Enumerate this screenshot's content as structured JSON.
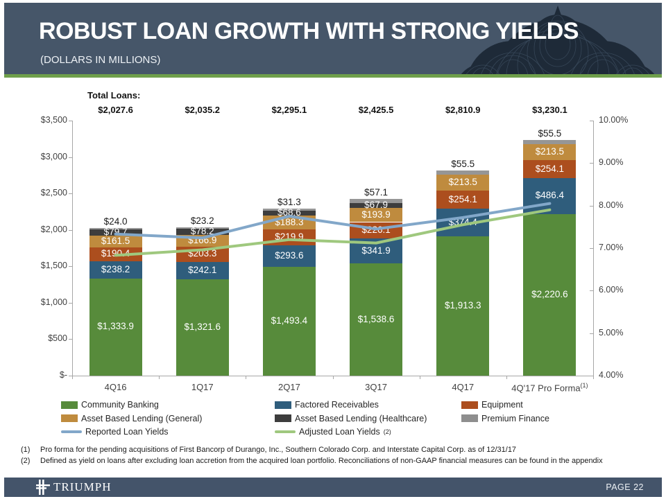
{
  "header": {
    "title": "ROBUST LOAN GROWTH WITH STRONG YIELDS",
    "subtitle": "(DOLLARS IN MILLIONS)"
  },
  "chart_data": {
    "type": "bar",
    "subtype": "stacked-bar-with-yield-lines",
    "title_row_label": "Total Loans:",
    "categories": [
      "4Q16",
      "1Q17",
      "2Q17",
      "3Q17",
      "4Q17",
      "4Q'17 Pro Forma"
    ],
    "category_footnote": {
      "index": 5,
      "marker": "(1)"
    },
    "totals": [
      "$2,027.6",
      "$2,035.2",
      "$2,295.1",
      "$2,425.5",
      "$2,810.9",
      "$3,230.1"
    ],
    "left_axis": {
      "labels": [
        "$3,500",
        "$3,000",
        "$2,500",
        "$2,000",
        "$1,500",
        "$1,000",
        "$500",
        "$-"
      ],
      "min": 0,
      "max": 3500,
      "step": 500
    },
    "right_axis": {
      "labels": [
        "10.00%",
        "9.00%",
        "8.00%",
        "7.00%",
        "6.00%",
        "5.00%",
        "4.00%"
      ],
      "min": 4,
      "max": 10,
      "step": 1
    },
    "series_colors": {
      "Community Banking": "#578b3b",
      "Factored Receivables": "#2f5d7c",
      "Equipment": "#ac4e1e",
      "Asset Based Lending (General)": "#bf8b3e",
      "Asset Based Lending (Healthcare)": "#3d3d3d",
      "Premium Finance": "#969696"
    },
    "bars": [
      {
        "category": "4Q16",
        "segments": [
          {
            "series": "Community Banking",
            "value": 1333.9,
            "label": "$1,333.9"
          },
          {
            "series": "Factored Receivables",
            "value": 238.2,
            "label": "$238.2"
          },
          {
            "series": "Equipment",
            "value": 190.4,
            "label": "$190.4"
          },
          {
            "series": "Asset Based Lending (General)",
            "value": 161.5,
            "label": "$161.5"
          },
          {
            "series": "Asset Based Lending (Healthcare)",
            "value": 79.7,
            "label": "$79.7"
          },
          {
            "series": "Premium Finance",
            "value": 24.0,
            "label": "$24.0",
            "label_above": true
          }
        ]
      },
      {
        "category": "1Q17",
        "segments": [
          {
            "series": "Community Banking",
            "value": 1321.6,
            "label": "$1,321.6"
          },
          {
            "series": "Factored Receivables",
            "value": 242.1,
            "label": "$242.1"
          },
          {
            "series": "Equipment",
            "value": 203.3,
            "label": "$203.3"
          },
          {
            "series": "Asset Based Lending (General)",
            "value": 166.9,
            "label": "$166.9"
          },
          {
            "series": "Asset Based Lending (Healthcare)",
            "value": 78.2,
            "label": "$78.2"
          },
          {
            "series": "Premium Finance",
            "value": 23.2,
            "label": "$23.2",
            "label_above": true
          }
        ]
      },
      {
        "category": "2Q17",
        "segments": [
          {
            "series": "Community Banking",
            "value": 1493.4,
            "label": "$1,493.4"
          },
          {
            "series": "Factored Receivables",
            "value": 293.6,
            "label": "$293.6"
          },
          {
            "series": "Equipment",
            "value": 219.9,
            "label": "$219.9"
          },
          {
            "series": "Asset Based Lending (General)",
            "value": 188.3,
            "label": "$188.3"
          },
          {
            "series": "Asset Based Lending (Healthcare)",
            "value": 68.6,
            "label": "$68.6"
          },
          {
            "series": "Premium Finance",
            "value": 31.3,
            "label": "$31.3",
            "label_above": true
          }
        ]
      },
      {
        "category": "3Q17",
        "segments": [
          {
            "series": "Community Banking",
            "value": 1538.6,
            "label": "$1,538.6"
          },
          {
            "series": "Factored Receivables",
            "value": 341.9,
            "label": "$341.9"
          },
          {
            "series": "Equipment",
            "value": 226.1,
            "label": "$226.1"
          },
          {
            "series": "Asset Based Lending (General)",
            "value": 193.9,
            "label": "$193.9"
          },
          {
            "series": "Asset Based Lending (Healthcare)",
            "value": 67.9,
            "label": "$67.9"
          },
          {
            "series": "Premium Finance",
            "value": 57.1,
            "label": "$57.1",
            "label_above": true
          }
        ]
      },
      {
        "category": "4Q17",
        "segments": [
          {
            "series": "Community Banking",
            "value": 1913.3,
            "label": "$1,913.3"
          },
          {
            "series": "Factored Receivables",
            "value": 374.4,
            "label": "$374.4"
          },
          {
            "series": "Equipment",
            "value": 254.1,
            "label": "$254.1"
          },
          {
            "series": "Asset Based Lending (General)",
            "value": 213.5,
            "label": "$213.5"
          },
          {
            "series": "Premium Finance",
            "value": 55.5,
            "label": "$55.5",
            "label_above": true
          }
        ]
      },
      {
        "category": "4Q'17 Pro Forma",
        "segments": [
          {
            "series": "Community Banking",
            "value": 2220.6,
            "label": "$2,220.6"
          },
          {
            "series": "Factored Receivables",
            "value": 486.4,
            "label": "$486.4"
          },
          {
            "series": "Equipment",
            "value": 254.1,
            "label": "$254.1"
          },
          {
            "series": "Asset Based Lending (General)",
            "value": 213.5,
            "label": "$213.5"
          },
          {
            "series": "Premium Finance",
            "value": 55.5,
            "label": "$55.5",
            "label_above": true
          }
        ]
      }
    ],
    "lines": [
      {
        "name": "Reported Loan Yields",
        "color": "#82a7c9",
        "values_pct": [
          7.33,
          7.24,
          7.75,
          7.45,
          7.72,
          8.05
        ],
        "estimated_from_plot": true
      },
      {
        "name": "Adjusted Loan Yields",
        "color": "#9fc87e",
        "values_pct": [
          6.83,
          6.96,
          7.2,
          7.12,
          7.55,
          7.9
        ],
        "estimated_from_plot": true
      }
    ],
    "legend": {
      "columns": [
        [
          {
            "label": "Community Banking",
            "type": "patch",
            "color": "#578b3b"
          },
          {
            "label": "Asset Based Lending (General)",
            "type": "patch",
            "color": "#bf8b3e"
          },
          {
            "label": "Reported Loan Yields",
            "type": "line",
            "color": "#82a7c9"
          }
        ],
        [
          {
            "label": "Factored Receivables",
            "type": "patch",
            "color": "#2f5d7c"
          },
          {
            "label": "Asset Based Lending (Healthcare)",
            "type": "patch",
            "color": "#3d3d3d"
          },
          {
            "label": "Adjusted Loan Yields",
            "type": "line",
            "color": "#9fc87e",
            "sup": "(2)"
          }
        ],
        [
          {
            "label": "Equipment",
            "type": "patch",
            "color": "#ac4e1e"
          },
          {
            "label": "Premium Finance",
            "type": "patch",
            "color": "#8e8e8e"
          }
        ]
      ]
    }
  },
  "footnotes": [
    {
      "marker": "(1)",
      "text": "Pro forma for the pending acquisitions of First Bancorp of Durango, Inc.,  Southern Colorado Corp. and Interstate Capital Corp. as of 12/31/17"
    },
    {
      "marker": "(2)",
      "text": "Defined as yield on loans after excluding loan accretion from the acquired loan portfolio. Reconciliations of non-GAAP financial measures can be found in the appendix"
    }
  ],
  "footer": {
    "brand": "TRIUMPH",
    "page": "PAGE 22"
  }
}
